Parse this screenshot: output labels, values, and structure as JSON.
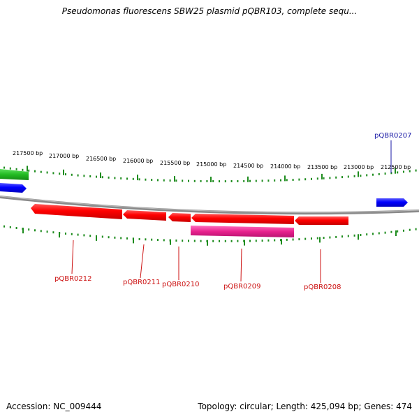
{
  "title": "Pseudomonas fluorescens SBW25 plasmid pQBR103, complete sequ...",
  "scale_labels": [
    "217500 bp",
    "217000 bp",
    "216500 bp",
    "216000 bp",
    "215500 bp",
    "215000 bp",
    "214500 bp",
    "214000 bp",
    "213500 bp",
    "213000 bp",
    "212500 bp"
  ],
  "genes_top": [
    {
      "label": "pQBR0207",
      "color": "#1a1aa6",
      "strand": "forward"
    }
  ],
  "genes_bottom": [
    {
      "label": "pQBR0212",
      "color": "#e0141e",
      "strand": "reverse"
    },
    {
      "label": "pQBR0211",
      "color": "#e0141e",
      "strand": "reverse"
    },
    {
      "label": "pQBR0210",
      "color": "#e0141e",
      "strand": "reverse"
    },
    {
      "label": "pQBR0209",
      "color": "#e0141e",
      "strand": "reverse"
    },
    {
      "label": "pQBR0208",
      "color": "#e0141e",
      "strand": "reverse"
    }
  ],
  "extra_feature_label_color": "#e01a8c",
  "colors": {
    "forward_gene": "#0000ff",
    "reverse_gene": "#ff0000",
    "pink_feature": "#e8228e",
    "green_feature": "#22bb22",
    "backbone": "#888888",
    "ticks": "#1e8c1e",
    "label_blue": "#1a1aa6",
    "label_red": "#cc1111"
  },
  "footer": {
    "accession": "Accession: NC_009444",
    "summary": "Topology: circular; Length: 425,094 bp; Genes: 474"
  }
}
